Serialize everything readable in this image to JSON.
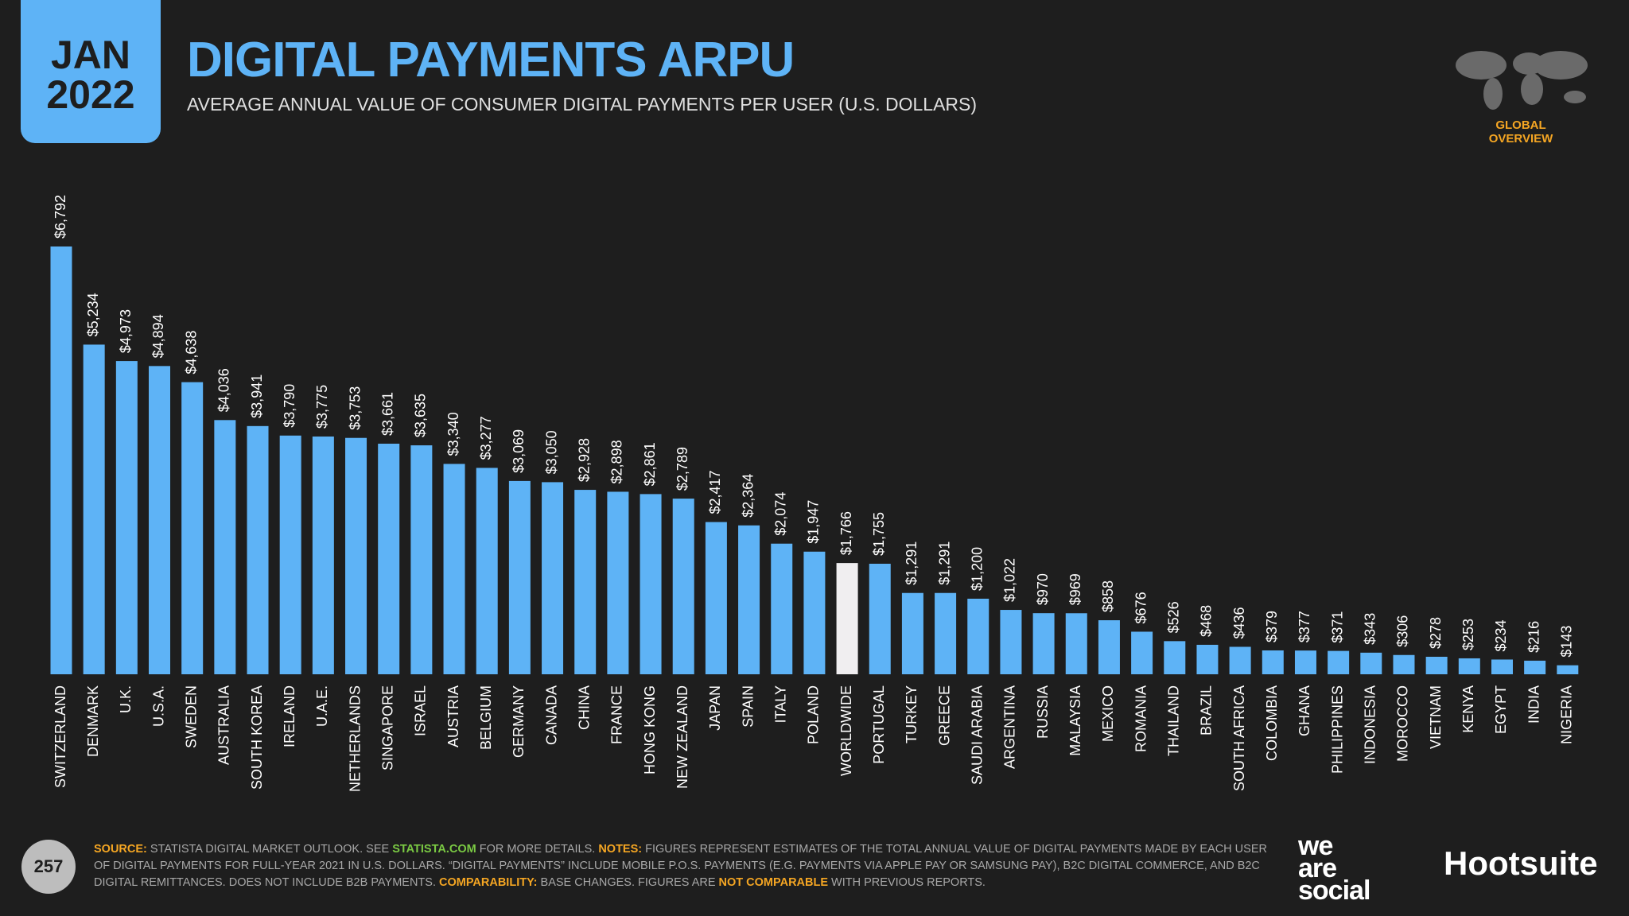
{
  "header": {
    "month": "JAN",
    "year": "2022",
    "title": "DIGITAL PAYMENTS ARPU",
    "subtitle": "AVERAGE ANNUAL VALUE OF CONSUMER DIGITAL PAYMENTS PER USER (U.S. DOLLARS)",
    "section": "GLOBAL OVERVIEW",
    "page": "257"
  },
  "chart_data": {
    "type": "bar",
    "categories": [
      "SWITZERLAND",
      "DENMARK",
      "U.K.",
      "U.S.A.",
      "SWEDEN",
      "AUSTRALIA",
      "SOUTH KOREA",
      "IRELAND",
      "U.A.E.",
      "NETHERLANDS",
      "SINGAPORE",
      "ISRAEL",
      "AUSTRIA",
      "BELGIUM",
      "GERMANY",
      "CANADA",
      "CHINA",
      "FRANCE",
      "HONG KONG",
      "NEW ZEALAND",
      "JAPAN",
      "SPAIN",
      "ITALY",
      "POLAND",
      "WORLDWIDE",
      "PORTUGAL",
      "TURKEY",
      "GREECE",
      "SAUDI ARABIA",
      "ARGENTINA",
      "RUSSIA",
      "MALAYSIA",
      "MEXICO",
      "ROMANIA",
      "THAILAND",
      "BRAZIL",
      "SOUTH AFRICA",
      "COLOMBIA",
      "GHANA",
      "PHILIPPINES",
      "INDONESIA",
      "MOROCCO",
      "VIETNAM",
      "KENYA",
      "EGYPT",
      "INDIA",
      "NIGERIA"
    ],
    "values": [
      6792,
      5234,
      4973,
      4894,
      4638,
      4036,
      3941,
      3790,
      3775,
      3753,
      3661,
      3635,
      3340,
      3277,
      3069,
      3050,
      2928,
      2898,
      2861,
      2789,
      2417,
      2364,
      2074,
      1947,
      1766,
      1755,
      1291,
      1291,
      1200,
      1022,
      970,
      969,
      858,
      676,
      526,
      468,
      436,
      379,
      377,
      371,
      343,
      306,
      278,
      253,
      234,
      216,
      143
    ],
    "value_labels": [
      "$6,792",
      "$5,234",
      "$4,973",
      "$4,894",
      "$4,638",
      "$4,036",
      "$3,941",
      "$3,790",
      "$3,775",
      "$3,753",
      "$3,661",
      "$3,635",
      "$3,340",
      "$3,277",
      "$3,069",
      "$3,050",
      "$2,928",
      "$2,898",
      "$2,861",
      "$2,789",
      "$2,417",
      "$2,364",
      "$2,074",
      "$1,947",
      "$1,766",
      "$1,755",
      "$1,291",
      "$1,291",
      "$1,200",
      "$1,022",
      "$970",
      "$969",
      "$858",
      "$676",
      "$526",
      "$468",
      "$436",
      "$379",
      "$377",
      "$371",
      "$343",
      "$306",
      "$278",
      "$253",
      "$234",
      "$216",
      "$143"
    ],
    "colors": [
      "#5eb3f6",
      "#5eb3f6",
      "#5eb3f6",
      "#5eb3f6",
      "#5eb3f6",
      "#5eb3f6",
      "#5eb3f6",
      "#5eb3f6",
      "#5eb3f6",
      "#5eb3f6",
      "#5eb3f6",
      "#5eb3f6",
      "#5eb3f6",
      "#5eb3f6",
      "#5eb3f6",
      "#5eb3f6",
      "#5eb3f6",
      "#5eb3f6",
      "#5eb3f6",
      "#5eb3f6",
      "#5eb3f6",
      "#5eb3f6",
      "#5eb3f6",
      "#5eb3f6",
      "#f0eef0",
      "#5eb3f6",
      "#5eb3f6",
      "#5eb3f6",
      "#5eb3f6",
      "#5eb3f6",
      "#5eb3f6",
      "#5eb3f6",
      "#5eb3f6",
      "#5eb3f6",
      "#5eb3f6",
      "#5eb3f6",
      "#5eb3f6",
      "#5eb3f6",
      "#5eb3f6",
      "#5eb3f6",
      "#5eb3f6",
      "#5eb3f6",
      "#5eb3f6",
      "#5eb3f6",
      "#5eb3f6",
      "#5eb3f6",
      "#5eb3f6"
    ]
  },
  "footer": {
    "source": [
      {
        "text": "SOURCE:",
        "color": "#f5a623"
      },
      {
        "text": " STATISTA DIGITAL MARKET OUTLOOK. SEE ",
        "color": "#a8a8a8"
      },
      {
        "text": "STATISTA.COM",
        "color": "#7ac943"
      },
      {
        "text": " FOR MORE DETAILS. ",
        "color": "#a8a8a8"
      },
      {
        "text": "NOTES:",
        "color": "#f5a623"
      },
      {
        "text": " FIGURES REPRESENT ESTIMATES OF THE TOTAL ANNUAL VALUE OF DIGITAL PAYMENTS MADE BY EACH USER OF DIGITAL PAYMENTS FOR FULL-YEAR 2021 IN U.S. DOLLARS. “DIGITAL PAYMENTS” INCLUDE MOBILE P.O.S. PAYMENTS (E.G. PAYMENTS VIA APPLE PAY OR SAMSUNG PAY), B2C DIGITAL COMMERCE, AND B2C DIGITAL REMITTANCES. DOES NOT INCLUDE B2B PAYMENTS. ",
        "color": "#a8a8a8"
      },
      {
        "text": "COMPARABILITY:",
        "color": "#f5a623"
      },
      {
        "text": " BASE CHANGES. FIGURES ARE ",
        "color": "#a8a8a8"
      },
      {
        "text": "NOT COMPARABLE",
        "color": "#f5a623"
      },
      {
        "text": " WITH PREVIOUS REPORTS.",
        "color": "#a8a8a8"
      }
    ],
    "logo1": [
      "we",
      "are",
      "social"
    ],
    "logo2": "Hootsuite"
  }
}
